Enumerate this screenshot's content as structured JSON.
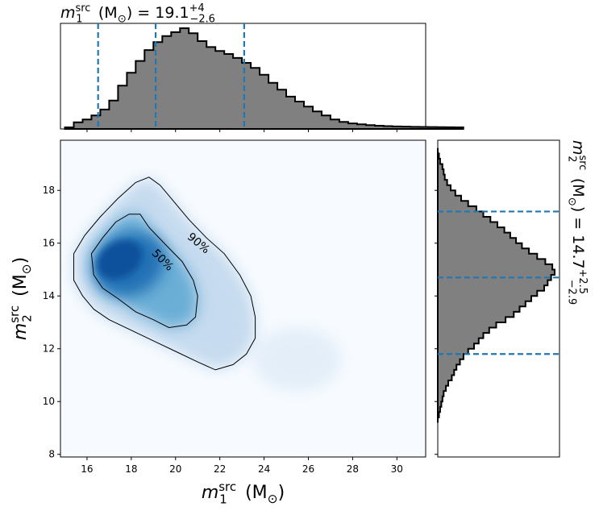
{
  "chart_data": {
    "type": "corner",
    "joint": {
      "type": "heatmap",
      "xlabel": {
        "symbol": "m",
        "sup": "src",
        "sub": "1",
        "unit": "(M",
        "unit_sub": "⊙",
        "close": ")"
      },
      "ylabel": {
        "symbol": "m",
        "sup": "src",
        "sub": "2",
        "unit": "(M",
        "unit_sub": "⊙",
        "close": ")"
      },
      "xlim": [
        14.8,
        31.3
      ],
      "ylim": [
        7.9,
        19.9
      ],
      "xticks": [
        "16",
        "18",
        "20",
        "22",
        "24",
        "26",
        "28",
        "30"
      ],
      "yticks": [
        "8",
        "10",
        "12",
        "14",
        "16",
        "18"
      ],
      "colormap": "Blues",
      "density_peak": {
        "x": 17.6,
        "y": 15.2
      },
      "contours": [
        {
          "label": "90%",
          "points": [
            [
              15.8,
              14.0
            ],
            [
              15.4,
              14.6
            ],
            [
              15.4,
              15.6
            ],
            [
              15.9,
              16.3
            ],
            [
              16.6,
              17.0
            ],
            [
              17.4,
              17.7
            ],
            [
              18.2,
              18.3
            ],
            [
              18.8,
              18.5
            ],
            [
              19.3,
              18.2
            ],
            [
              19.9,
              17.6
            ],
            [
              20.6,
              16.9
            ],
            [
              21.4,
              16.2
            ],
            [
              22.2,
              15.6
            ],
            [
              22.9,
              14.8
            ],
            [
              23.4,
              14.0
            ],
            [
              23.6,
              13.2
            ],
            [
              23.6,
              12.4
            ],
            [
              23.2,
              11.8
            ],
            [
              22.6,
              11.4
            ],
            [
              21.8,
              11.2
            ],
            [
              21.0,
              11.5
            ],
            [
              20.0,
              11.9
            ],
            [
              19.0,
              12.3
            ],
            [
              18.0,
              12.7
            ],
            [
              17.0,
              13.1
            ],
            [
              16.3,
              13.5
            ]
          ]
        },
        {
          "label": "50%",
          "points": [
            [
              16.3,
              14.8
            ],
            [
              16.2,
              15.6
            ],
            [
              16.7,
              16.2
            ],
            [
              17.3,
              16.8
            ],
            [
              17.9,
              17.1
            ],
            [
              18.4,
              17.1
            ],
            [
              18.8,
              16.6
            ],
            [
              19.6,
              15.9
            ],
            [
              20.3,
              15.3
            ],
            [
              20.8,
              14.6
            ],
            [
              21.0,
              14.0
            ],
            [
              20.9,
              13.2
            ],
            [
              20.5,
              12.9
            ],
            [
              19.7,
              12.8
            ],
            [
              19.0,
              13.1
            ],
            [
              18.2,
              13.4
            ],
            [
              17.4,
              13.9
            ],
            [
              16.7,
              14.3
            ]
          ]
        }
      ]
    },
    "marginal_x": {
      "type": "histogram",
      "title": {
        "symbol": "m",
        "sup": "src",
        "sub": "1",
        "unit": "(M",
        "unit_sub": "⊙",
        "close": ")",
        "value": "= 19.1",
        "plus": "+4",
        "minus": "−2.6"
      },
      "median": 19.1,
      "quantiles": [
        16.5,
        19.1,
        23.1
      ],
      "bins": {
        "start": 15.0,
        "width": 0.4
      },
      "values": [
        0.0,
        0.05,
        0.08,
        0.12,
        0.18,
        0.27,
        0.42,
        0.55,
        0.67,
        0.78,
        0.86,
        0.92,
        0.96,
        1.0,
        0.95,
        0.87,
        0.81,
        0.77,
        0.74,
        0.7,
        0.65,
        0.6,
        0.53,
        0.45,
        0.38,
        0.31,
        0.26,
        0.21,
        0.16,
        0.12,
        0.08,
        0.055,
        0.04,
        0.03,
        0.022,
        0.016,
        0.012,
        0.009,
        0.007,
        0.005,
        0.004,
        0.003,
        0.002,
        0.001,
        0.0
      ]
    },
    "marginal_y": {
      "type": "histogram",
      "orientation": "horizontal",
      "title": {
        "symbol": "m",
        "sup": "src",
        "sub": "2",
        "unit": "(M",
        "unit_sub": "⊙",
        "close": ")",
        "value": "= 14.7",
        "plus": "+2.5",
        "minus": "−2.9"
      },
      "median": 14.7,
      "quantiles": [
        11.8,
        14.7,
        17.2
      ],
      "bins": {
        "start": 9.2,
        "width": 0.2
      },
      "values": [
        0.0,
        0.01,
        0.02,
        0.03,
        0.04,
        0.05,
        0.07,
        0.09,
        0.12,
        0.14,
        0.16,
        0.19,
        0.22,
        0.26,
        0.31,
        0.35,
        0.39,
        0.44,
        0.5,
        0.58,
        0.65,
        0.7,
        0.75,
        0.8,
        0.85,
        0.91,
        0.94,
        0.97,
        1.0,
        0.98,
        0.92,
        0.85,
        0.78,
        0.72,
        0.67,
        0.62,
        0.57,
        0.51,
        0.45,
        0.39,
        0.33,
        0.26,
        0.2,
        0.15,
        0.11,
        0.08,
        0.06,
        0.05,
        0.04,
        0.02,
        0.01,
        0.0
      ]
    },
    "colors": {
      "histogram_fill": "#808080",
      "histogram_edge": "#000000",
      "quantile_line": "#1f77b4",
      "contour": "#000000"
    }
  }
}
